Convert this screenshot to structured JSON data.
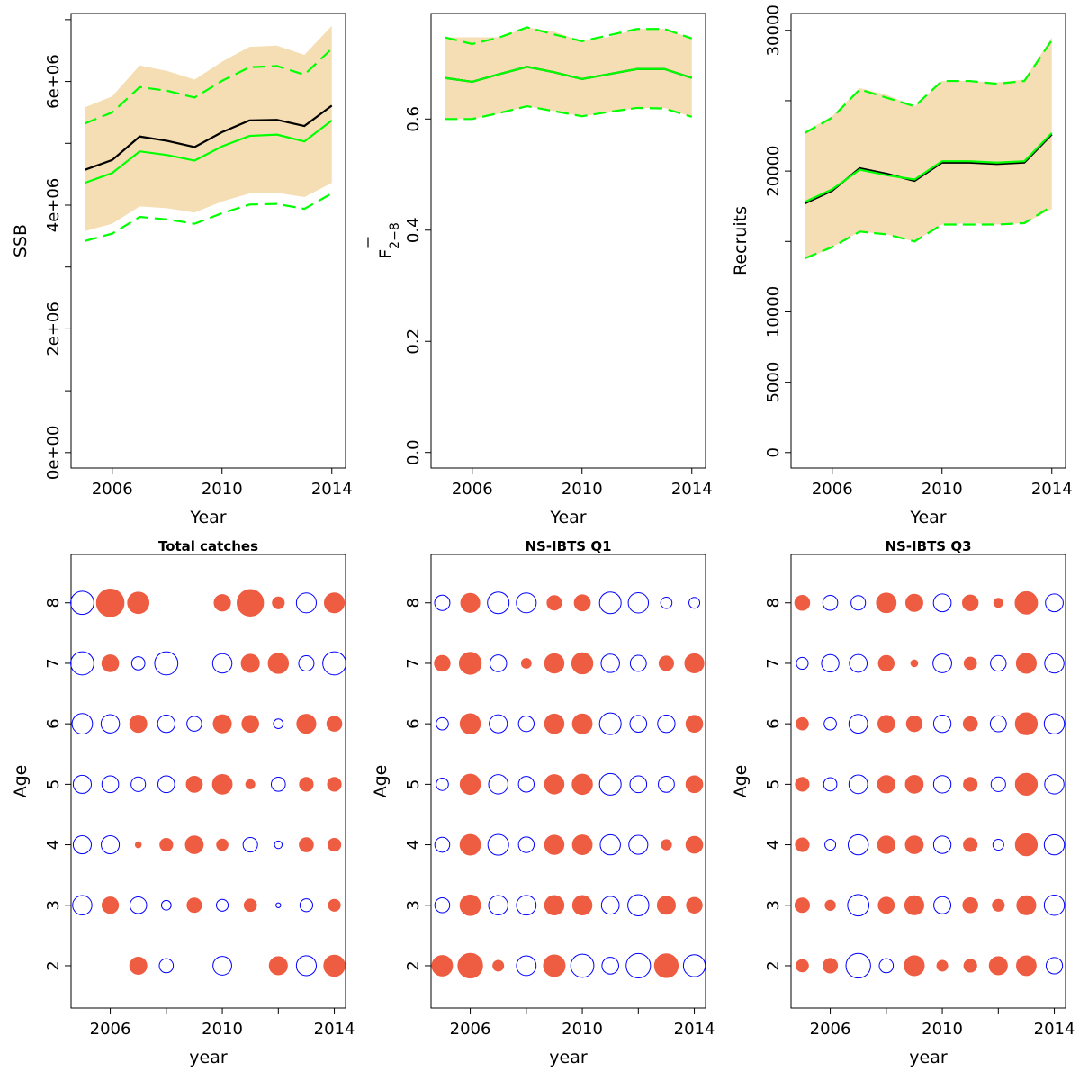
{
  "colors": {
    "band": "#F5DEB3",
    "estimate": "#00FF00",
    "reference": "#000000",
    "positive": "#EE5C42",
    "negative": "#0000FF"
  },
  "chart_data": [
    {
      "type": "area",
      "name": "ssb",
      "title": "",
      "xlabel": "Year",
      "ylabel": "SSB",
      "xlim": [
        2004.5,
        2014.5
      ],
      "ylim": [
        -250000,
        7100000
      ],
      "xticks": [
        2006,
        2010,
        2014
      ],
      "xtick_labels": [
        "2006",
        "2010",
        "2014"
      ],
      "yticks": [
        0,
        1000000,
        2000000,
        3000000,
        4000000,
        5000000,
        6000000,
        7000000
      ],
      "ytick_labels": [
        "0e+00",
        "",
        "2e+06",
        "",
        "4e+06",
        "",
        "6e+06",
        ""
      ],
      "x": [
        2005,
        2006,
        2007,
        2008,
        2009,
        2010,
        2011,
        2012,
        2013,
        2014
      ],
      "band": {
        "lower": [
          3580000,
          3700000,
          3980000,
          3950000,
          3880000,
          4060000,
          4190000,
          4200000,
          4130000,
          4360000
        ],
        "upper": [
          5580000,
          5760000,
          6260000,
          6170000,
          6030000,
          6320000,
          6560000,
          6580000,
          6430000,
          6900000
        ]
      },
      "series": [
        {
          "role": "reference",
          "values": [
            4570000,
            4730000,
            5110000,
            5040000,
            4940000,
            5180000,
            5370000,
            5380000,
            5280000,
            5610000
          ]
        },
        {
          "role": "estimate",
          "values": [
            4360000,
            4520000,
            4870000,
            4810000,
            4720000,
            4950000,
            5120000,
            5140000,
            5030000,
            5370000
          ]
        },
        {
          "role": "upper",
          "dashed": true,
          "values": [
            5320000,
            5500000,
            5910000,
            5850000,
            5740000,
            6010000,
            6230000,
            6250000,
            6110000,
            6530000
          ]
        },
        {
          "role": "lower",
          "dashed": true,
          "values": [
            3420000,
            3540000,
            3810000,
            3770000,
            3700000,
            3870000,
            4010000,
            4020000,
            3940000,
            4190000
          ]
        }
      ]
    },
    {
      "type": "area",
      "name": "fbar",
      "title": "",
      "xlabel": "Year",
      "ylabel": "F",
      "ylabel_subscript": "2−8",
      "xlim": [
        2004.5,
        2014.5
      ],
      "ylim": [
        -0.028,
        0.79
      ],
      "xticks": [
        2006,
        2010,
        2014
      ],
      "xtick_labels": [
        "2006",
        "2010",
        "2014"
      ],
      "yticks": [
        0,
        0.2,
        0.4,
        0.6
      ],
      "ytick_labels": [
        "0.0",
        "0.2",
        "0.4",
        "0.6"
      ],
      "x": [
        2005,
        2006,
        2007,
        2008,
        2009,
        2010,
        2011,
        2012,
        2013,
        2014
      ],
      "band": {
        "lower": [
          0.6,
          0.6,
          0.61,
          0.623,
          0.614,
          0.605,
          0.612,
          0.62,
          0.62,
          0.604
        ],
        "upper": [
          0.747,
          0.747,
          0.747,
          0.765,
          0.757,
          0.74,
          0.748,
          0.762,
          0.762,
          0.745
        ]
      },
      "series": [
        {
          "role": "reference",
          "values": [
            0.674,
            0.667,
            0.681,
            0.694,
            0.684,
            0.672,
            0.681,
            0.69,
            0.69,
            0.674
          ]
        },
        {
          "role": "estimate",
          "values": [
            0.674,
            0.667,
            0.681,
            0.694,
            0.684,
            0.672,
            0.681,
            0.69,
            0.69,
            0.674
          ]
        },
        {
          "role": "upper",
          "dashed": true,
          "values": [
            0.747,
            0.735,
            0.747,
            0.765,
            0.752,
            0.74,
            0.751,
            0.762,
            0.762,
            0.745
          ]
        },
        {
          "role": "lower",
          "dashed": true,
          "values": [
            0.6,
            0.6,
            0.611,
            0.623,
            0.614,
            0.605,
            0.613,
            0.62,
            0.619,
            0.604
          ]
        }
      ]
    },
    {
      "type": "area",
      "name": "recruits",
      "title": "",
      "xlabel": "Year",
      "ylabel": "Recruits",
      "xlim": [
        2004.5,
        2014.5
      ],
      "ylim": [
        -1100000,
        31200000
      ],
      "xticks": [
        2006,
        2010,
        2014
      ],
      "xtick_labels": [
        "2006",
        "2010",
        "2014"
      ],
      "yticks": [
        0,
        5000000,
        10000000,
        15000000,
        20000000,
        25000000,
        30000000
      ],
      "ytick_labels": [
        "0",
        "5000",
        "10000",
        "",
        "20000",
        "",
        "30000"
      ],
      "x": [
        2005,
        2006,
        2007,
        2008,
        2009,
        2010,
        2011,
        2012,
        2013,
        2014
      ],
      "band": {
        "lower": [
          13700000,
          14600000,
          15700000,
          15500000,
          15000000,
          16200000,
          16300000,
          16200000,
          16300000,
          17300000
        ],
        "upper": [
          22800000,
          23900000,
          25900000,
          25400000,
          24600000,
          26400000,
          26400000,
          26300000,
          26500000,
          29500000
        ]
      },
      "series": [
        {
          "role": "reference",
          "values": [
            17700000,
            18600000,
            20200000,
            19800000,
            19300000,
            20600000,
            20600000,
            20500000,
            20600000,
            22600000
          ]
        },
        {
          "role": "estimate",
          "values": [
            17800000,
            18700000,
            20100000,
            19700000,
            19400000,
            20700000,
            20700000,
            20600000,
            20700000,
            22700000
          ]
        },
        {
          "role": "upper",
          "dashed": true,
          "values": [
            22700000,
            23800000,
            25800000,
            25200000,
            24600000,
            26400000,
            26400000,
            26200000,
            26400000,
            29300000
          ]
        },
        {
          "role": "lower",
          "dashed": true,
          "values": [
            13800000,
            14600000,
            15700000,
            15500000,
            15000000,
            16200000,
            16200000,
            16200000,
            16300000,
            17500000
          ]
        }
      ]
    },
    {
      "type": "scatter",
      "name": "total-catches",
      "title": "Total catches",
      "xlabel": "year",
      "ylabel": "Age",
      "xlim": [
        2004.6,
        2014.4
      ],
      "ylim": [
        1.3,
        8.8
      ],
      "xticks": [
        2006,
        2010,
        2014
      ],
      "xtick_labels": [
        "2006",
        "2010",
        "2014"
      ],
      "xticks_minor": [
        2008,
        2012
      ],
      "yticks": [
        2,
        3,
        4,
        5,
        6,
        7,
        8
      ],
      "ytick_labels": [
        "2",
        "3",
        "4",
        "5",
        "6",
        "7",
        "8"
      ],
      "x": [
        2005,
        2006,
        2007,
        2008,
        2009,
        2010,
        2011,
        2012,
        2013,
        2014
      ],
      "ages": [
        2,
        3,
        4,
        5,
        6,
        7,
        8
      ],
      "residuals": [
        [
          null,
          null,
          2.5,
          -1.7,
          null,
          -3,
          null,
          2.8,
          -3.4,
          3.8
        ],
        [
          -3.2,
          2.3,
          -2.4,
          -0.8,
          1.8,
          -1.2,
          1.3,
          -0.2,
          -1.4,
          1.2
        ],
        [
          -2.8,
          -2.8,
          0.3,
          1.4,
          2.7,
          1.1,
          -1.8,
          -0.5,
          1.7,
          1.4
        ],
        [
          -2.8,
          -2.4,
          -1.8,
          -2.4,
          2.2,
          3.3,
          0.7,
          -1.7,
          1.6,
          1.6
        ],
        [
          -3.6,
          -2.9,
          2.5,
          -2.6,
          -1.9,
          2.8,
          2.4,
          -0.8,
          3.1,
          1.9
        ],
        [
          -4.6,
          2.4,
          -1.5,
          -4.6,
          null,
          -3.2,
          2.8,
          3.5,
          -2,
          -4.6
        ],
        [
          -4.6,
          6.5,
          3.9,
          null,
          null,
          2.3,
          6,
          1.2,
          -3.4,
          3.4
        ]
      ]
    },
    {
      "type": "scatter",
      "name": "ns-ibts-q1",
      "title": "NS-IBTS Q1",
      "xlabel": "year",
      "ylabel": "Age",
      "xlim": [
        2004.6,
        2014.4
      ],
      "ylim": [
        1.3,
        8.8
      ],
      "xticks": [
        2006,
        2010,
        2014
      ],
      "xtick_labels": [
        "2006",
        "2010",
        "2014"
      ],
      "xticks_minor": [
        2008,
        2012
      ],
      "yticks": [
        2,
        3,
        4,
        5,
        6,
        7,
        8
      ],
      "ytick_labels": [
        "2",
        "3",
        "4",
        "5",
        "6",
        "7",
        "8"
      ],
      "x": [
        2005,
        2006,
        2007,
        2008,
        2009,
        2010,
        2011,
        2012,
        2013,
        2014
      ],
      "ages": [
        2,
        3,
        4,
        5,
        6,
        7,
        8
      ],
      "residuals": [
        [
          3.6,
          5.2,
          1,
          -3.3,
          4,
          -4.6,
          -2.4,
          -5.1,
          4.8,
          -4.1
        ],
        [
          -1.9,
          3.6,
          -3.2,
          -3.3,
          3.2,
          3.2,
          -2.7,
          -3.8,
          2.8,
          2.1
        ],
        [
          -1.9,
          3.6,
          -3.7,
          -2.1,
          3.2,
          3.3,
          -3.5,
          -3.1,
          0.9,
          2.4
        ],
        [
          -1.3,
          3.5,
          -3.2,
          -2.1,
          3.2,
          3.5,
          -4,
          -2.4,
          -2.2,
          2.4
        ],
        [
          -1.3,
          3.5,
          -2.8,
          -2.1,
          3.2,
          3.3,
          -4,
          -2.4,
          -2.6,
          2.4
        ],
        [
          2.1,
          4.1,
          -2.4,
          0.8,
          3.2,
          3.8,
          -2.9,
          -2.2,
          1.8,
          3.1
        ],
        [
          -2,
          3.1,
          -4,
          -3.4,
          1.8,
          2.2,
          -4,
          -3.5,
          -1.1,
          -1
        ]
      ]
    },
    {
      "type": "scatter",
      "name": "ns-ibts-q3",
      "title": "NS-IBTS Q3",
      "xlabel": "year",
      "ylabel": "Age",
      "xlim": [
        2004.6,
        2014.4
      ],
      "ylim": [
        1.3,
        8.8
      ],
      "xticks": [
        2006,
        2010,
        2014
      ],
      "xtick_labels": [
        "2006",
        "2010",
        "2014"
      ],
      "xticks_minor": [
        2008,
        2012
      ],
      "yticks": [
        2,
        3,
        4,
        5,
        6,
        7,
        8
      ],
      "ytick_labels": [
        "2",
        "3",
        "4",
        "5",
        "6",
        "7",
        "8"
      ],
      "x": [
        2005,
        2006,
        2007,
        2008,
        2009,
        2010,
        2011,
        2012,
        2013,
        2014
      ],
      "ages": [
        2,
        3,
        4,
        5,
        6,
        7,
        8
      ],
      "residuals": [
        [
          1.3,
          1.8,
          -5.2,
          -1.7,
          3.4,
          1,
          1.4,
          2.8,
          3.3,
          -2.3
        ],
        [
          1.8,
          0.9,
          -3.9,
          2.2,
          3.1,
          -2.5,
          1.9,
          1.2,
          3.1,
          -3.5
        ],
        [
          1.6,
          -1,
          -3.5,
          2.6,
          2.7,
          -2.6,
          1.6,
          -1,
          4.1,
          -3.5
        ],
        [
          1.6,
          -1.5,
          -3,
          2.6,
          2.7,
          -2.6,
          1.6,
          -1.8,
          4.1,
          -3.2
        ],
        [
          1.3,
          -1.3,
          -3,
          2.4,
          2.1,
          -2.6,
          1.7,
          -2.2,
          4.1,
          -3.5
        ],
        [
          -1.2,
          -2.6,
          -2.7,
          2.1,
          0.4,
          -3,
          1.3,
          -2.1,
          3.4,
          -3.2
        ],
        [
          1.9,
          -1.9,
          -1.8,
          3.3,
          2.5,
          -2.7,
          2.1,
          0.7,
          4.3,
          -2.7
        ]
      ]
    }
  ]
}
